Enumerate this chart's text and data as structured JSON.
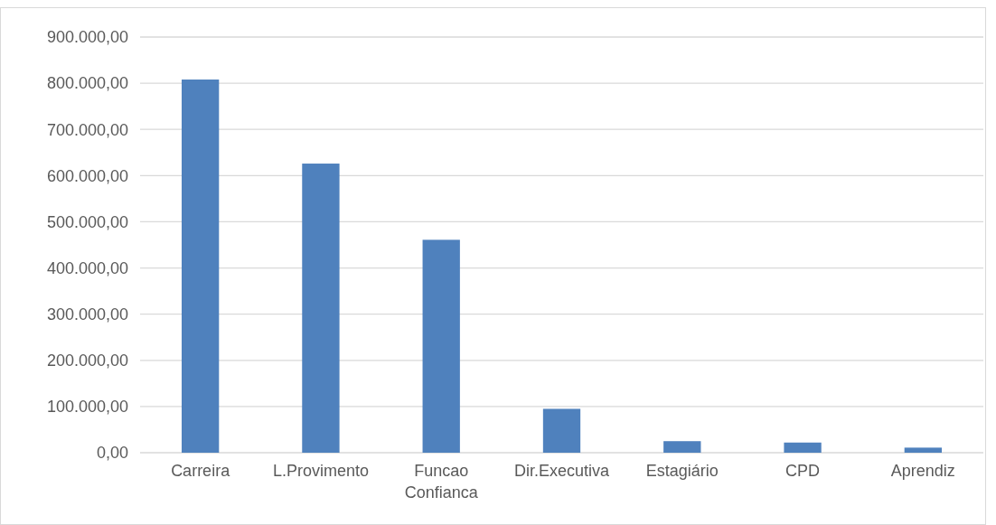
{
  "chart_data": {
    "type": "bar",
    "categories": [
      "Carreira",
      "L.Provimento",
      "Funcao Confianca",
      "Dir.Executiva",
      "Estagiário",
      "CPD",
      "Aprendiz"
    ],
    "values": [
      808000,
      626000,
      461000,
      95000,
      25000,
      22000,
      11000
    ],
    "color": "#4f81bd",
    "ylim": [
      0,
      900000
    ],
    "yticks": [
      {
        "value": 0,
        "label": "0,00"
      },
      {
        "value": 100000,
        "label": "100.000,00"
      },
      {
        "value": 200000,
        "label": "200.000,00"
      },
      {
        "value": 300000,
        "label": "300.000,00"
      },
      {
        "value": 400000,
        "label": "400.000,00"
      },
      {
        "value": 500000,
        "label": "500.000,00"
      },
      {
        "value": 600000,
        "label": "600.000,00"
      },
      {
        "value": 700000,
        "label": "700.000,00"
      },
      {
        "value": 800000,
        "label": "800.000,00"
      },
      {
        "value": 900000,
        "label": "900.000,00"
      }
    ],
    "grid": "y"
  }
}
